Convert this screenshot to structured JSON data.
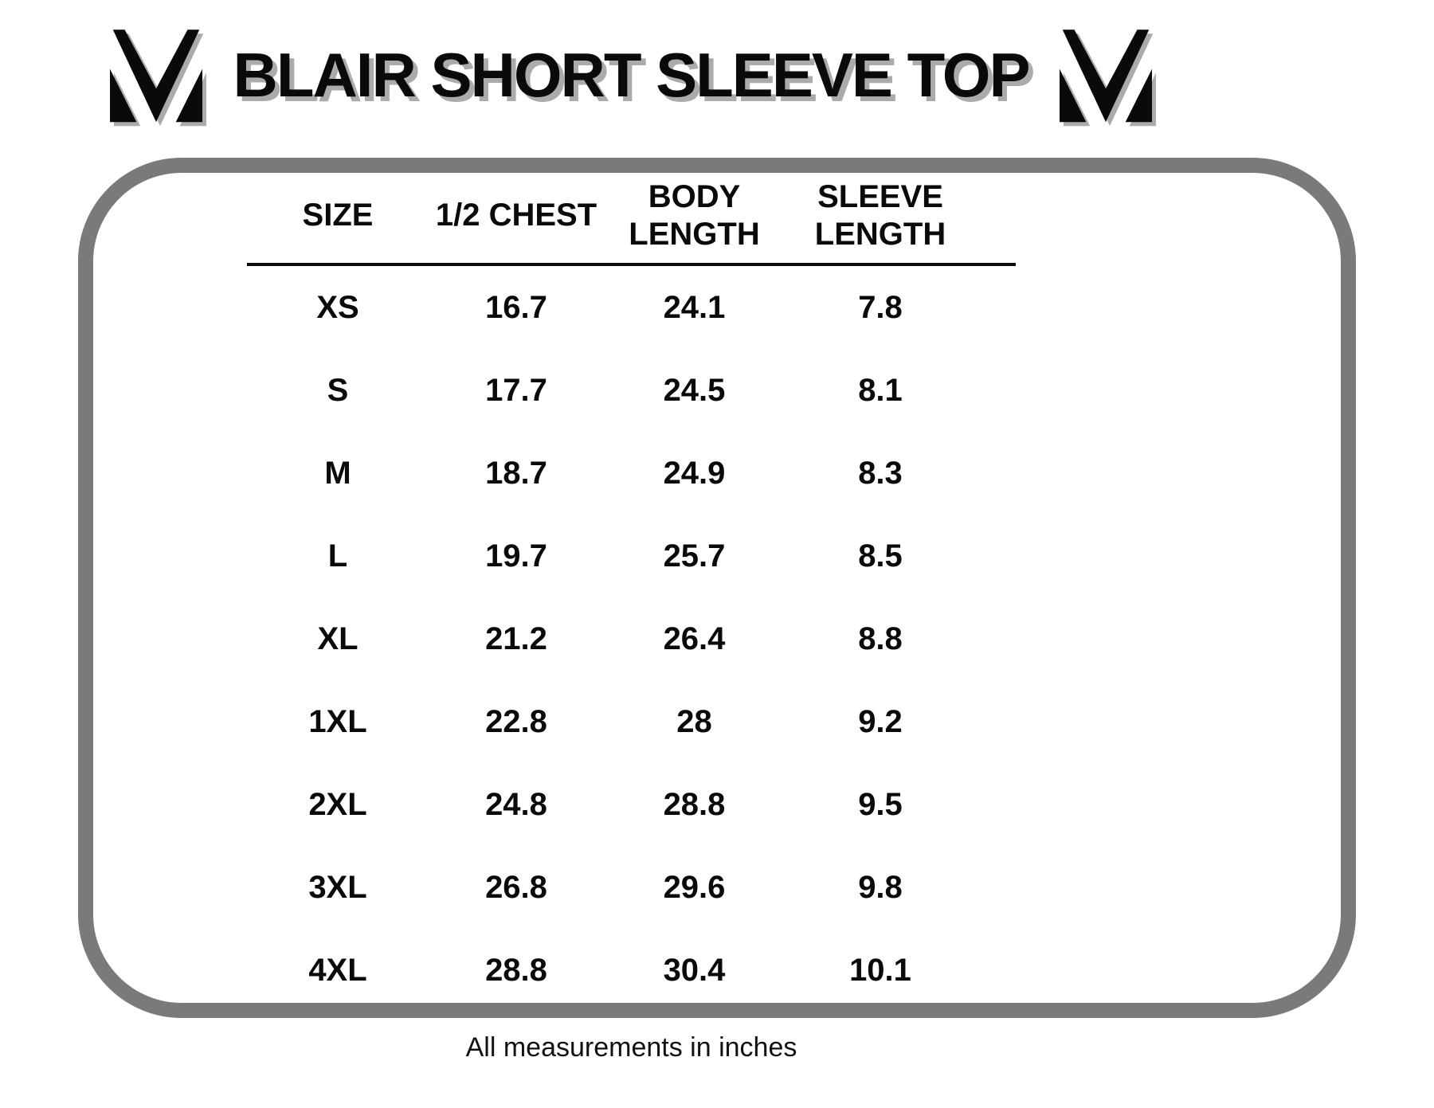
{
  "header": {
    "title": "BLAIR SHORT SLEEVE TOP",
    "left_logo": "brand-m-checkmark-mark",
    "right_logo": "brand-m-checkmark-mark"
  },
  "table": {
    "columns": [
      {
        "key": "size",
        "lines": [
          "SIZE"
        ]
      },
      {
        "key": "half-chest",
        "lines": [
          "1/2 CHEST"
        ]
      },
      {
        "key": "body-length",
        "lines": [
          "BODY",
          "LENGTH"
        ]
      },
      {
        "key": "sleeve-length",
        "lines": [
          "SLEEVE",
          "LENGTH"
        ]
      }
    ],
    "rows": [
      [
        "XS",
        "16.7",
        "24.1",
        "7.8"
      ],
      [
        "S",
        "17.7",
        "24.5",
        "8.1"
      ],
      [
        "M",
        "18.7",
        "24.9",
        "8.3"
      ],
      [
        "L",
        "19.7",
        "25.7",
        "8.5"
      ],
      [
        "XL",
        "21.2",
        "26.4",
        "8.8"
      ],
      [
        "1XL",
        "22.8",
        "28",
        "9.2"
      ],
      [
        "2XL",
        "24.8",
        "28.8",
        "9.5"
      ],
      [
        "3XL",
        "26.8",
        "29.6",
        "9.8"
      ],
      [
        "4XL",
        "28.8",
        "30.4",
        "10.1"
      ]
    ]
  },
  "footer": {
    "note": "All measurements in inches"
  },
  "colors": {
    "frame_border": "#7a7a7a",
    "text": "#0a0a0a",
    "title_shadow": "#ababab",
    "divider": "#0d0d0d",
    "background": "#ffffff"
  }
}
